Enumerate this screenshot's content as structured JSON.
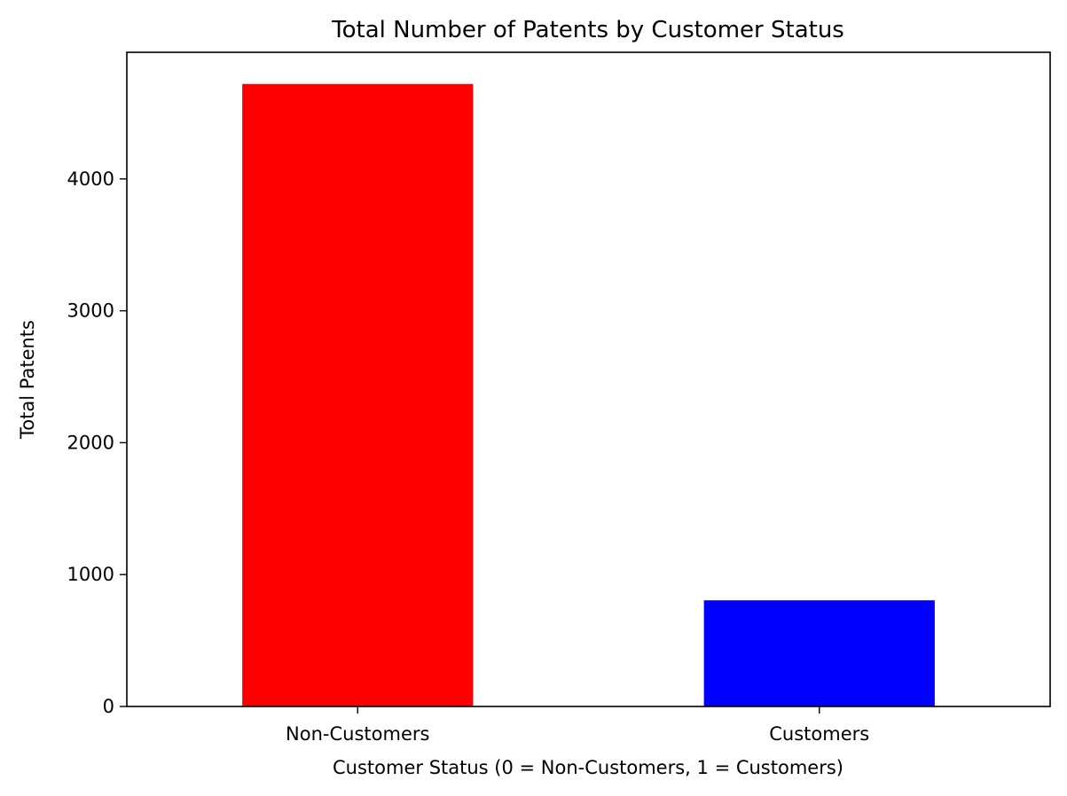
{
  "chart_data": {
    "type": "bar",
    "title": "Total Number of Patents by Customer Status",
    "xlabel": "Customer Status (0 = Non-Customers, 1 = Customers)",
    "ylabel": "Total Patents",
    "categories": [
      "Non-Customers",
      "Customers"
    ],
    "values": [
      4720,
      805
    ],
    "colors": [
      "#ff0000",
      "#0000ff"
    ],
    "ylim": [
      0,
      4960
    ],
    "yticks": [
      0,
      1000,
      2000,
      3000,
      4000
    ],
    "grid": false,
    "legend": "none"
  }
}
